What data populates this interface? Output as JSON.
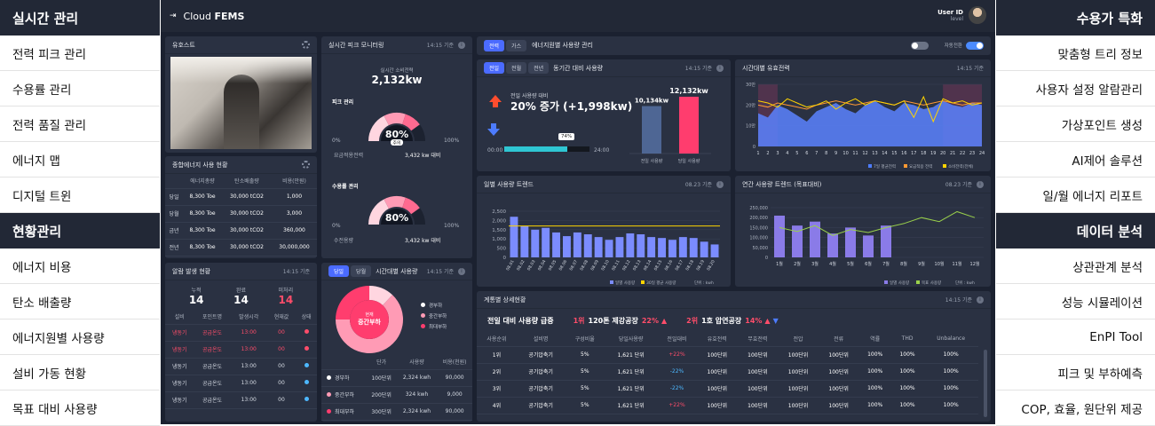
{
  "left_menu": [
    {
      "type": "header",
      "label": "실시간 관리"
    },
    {
      "type": "item",
      "label": "전력 피크 관리"
    },
    {
      "type": "item",
      "label": "수용률 관리"
    },
    {
      "type": "item",
      "label": "전력 품질 관리"
    },
    {
      "type": "item",
      "label": "에너지 맵"
    },
    {
      "type": "item",
      "label": "디지털 트윈"
    },
    {
      "type": "header",
      "label": "현황관리"
    },
    {
      "type": "item",
      "label": "에너지 비용"
    },
    {
      "type": "item",
      "label": "탄소 배출량"
    },
    {
      "type": "item",
      "label": "에너지원별 사용량"
    },
    {
      "type": "item",
      "label": "설비 가동 현황"
    },
    {
      "type": "item",
      "label": "목표 대비 사용량"
    }
  ],
  "right_menu": [
    {
      "type": "header",
      "label": "수용가 특화"
    },
    {
      "type": "item",
      "label": "맞춤형 트리 정보"
    },
    {
      "type": "item",
      "label": "사용자 설정 알람관리"
    },
    {
      "type": "item",
      "label": "가상포인트 생성"
    },
    {
      "type": "item",
      "label": "AI제어 솔루션"
    },
    {
      "type": "item",
      "label": "일/월 에너지 리포트"
    },
    {
      "type": "header",
      "label": "데이터 분석"
    },
    {
      "type": "item",
      "label": "상관관계 분석"
    },
    {
      "type": "item",
      "label": "성능 시뮬레이션"
    },
    {
      "type": "item",
      "label": "EnPI Tool"
    },
    {
      "type": "item",
      "label": "피크 및 부하예측"
    },
    {
      "type": "item",
      "label": "COP, 효율, 원단위 제공"
    }
  ],
  "topbar": {
    "app_prefix": "Cloud",
    "app_name": "FEMS",
    "user_id": "User ID",
    "user_level": "level"
  },
  "yuhost": {
    "title": "유호스트"
  },
  "summary": {
    "title": "종합에너지 사용 현황",
    "headers": [
      "",
      "에너지총량",
      "탄소배출량",
      "비용(만원)"
    ],
    "rows": [
      [
        "당일",
        "8,300 Toe",
        "30,000 tCO2",
        "1,000"
      ],
      [
        "당월",
        "8,300 Toe",
        "30,000 tCO2",
        "3,000"
      ],
      [
        "금년",
        "8,300 Toe",
        "30,000 tCO2",
        "360,000"
      ],
      [
        "전년",
        "8,300 Toe",
        "30,000 tCO2",
        "30,000,000"
      ]
    ]
  },
  "alarm": {
    "title": "알람 발생 현황",
    "time": "14:15 기준",
    "stats": [
      {
        "label": "누적",
        "value": "14"
      },
      {
        "label": "완료",
        "value": "14"
      },
      {
        "label": "미처리",
        "value": "14"
      }
    ],
    "headers": [
      "설비",
      "포인트명",
      "발생시각",
      "현재값",
      "상태"
    ],
    "rows": [
      [
        "냉동기",
        "공급온도",
        "13:00",
        "00",
        "#ff4d6a",
        "red"
      ],
      [
        "냉동기",
        "공급온도",
        "13:00",
        "00",
        "#ff4d6a",
        "red"
      ],
      [
        "냉동기",
        "공급온도",
        "13:00",
        "00",
        "#4db8ff",
        ""
      ],
      [
        "냉동기",
        "공급온도",
        "13:00",
        "00",
        "#4db8ff",
        ""
      ],
      [
        "냉동기",
        "공급온도",
        "13:00",
        "00",
        "#4db8ff",
        ""
      ]
    ]
  },
  "peak": {
    "title": "실시간 피크 모니터링",
    "time": "14:15 기준",
    "consumption_label": "실시간 소비전력",
    "consumption_value": "2,132kw",
    "peak_label": "피크 관리",
    "g1_percent": "80%",
    "g1_value": 0.8,
    "status": "주의",
    "contract_label": "요금적용전력",
    "contract_value": "3,432 kw 대비",
    "demand_label": "수용률 관리",
    "g2_percent": "80%",
    "g2_value": 0.8,
    "receive_label": "수전용량",
    "receive_value": "3,432 kw 대비",
    "scale_min": "0%",
    "scale_max": "100%"
  },
  "hourly": {
    "tabs": [
      "당일",
      "당월"
    ],
    "title": "시간대별 사용량",
    "time": "14:15 기준",
    "center_top": "현재",
    "center_main": "중간부하",
    "legend": [
      {
        "name": "경부하",
        "color": "#ffffff"
      },
      {
        "name": "중간부하",
        "color": "#ff9bb5"
      },
      {
        "name": "최대부하",
        "color": "#ff3d6e"
      }
    ],
    "headers": [
      "",
      "단가",
      "사용량",
      "비용(천원)"
    ],
    "rows": [
      {
        "name": "경부하",
        "color": "#ffffff",
        "price": "100단위",
        "usage": "2,324 kwh",
        "cost": "90,000"
      },
      {
        "name": "중간부하",
        "color": "#ff9bb5",
        "price": "200단위",
        "usage": "324 kwh",
        "cost": "9,000"
      },
      {
        "name": "최대부하",
        "color": "#ff3d6e",
        "price": "300단위",
        "usage": "2,324 kwh",
        "cost": "90,000"
      }
    ]
  },
  "energy_mgmt": {
    "tabs": [
      "전력",
      "가스"
    ],
    "title": "에너지원별 사용량 관리",
    "auto_label": "자동전환"
  },
  "compare": {
    "tabs": [
      "전일",
      "전월",
      "전년"
    ],
    "title": "동기간 대비 사용량",
    "time": "14:15 기준",
    "delta_label": "전일 사용량 대비",
    "delta_value": "20% 증가 (+1,998kw)",
    "progress_pct": "74%",
    "progress_value": 0.74,
    "time_start": "00:00",
    "time_end": "24:00"
  },
  "effective": {
    "title": "시간대별 유효전력",
    "time": "14:15 기준",
    "legend": [
      {
        "name": "7일 평균전력",
        "color": "#4d7cff"
      },
      {
        "name": "요금적용 전력",
        "color": "#ff9933"
      },
      {
        "name": "소비전력(전체)",
        "color": "#ffd400"
      }
    ]
  },
  "daily": {
    "title": "일별 사용량 트렌드",
    "time": "08.23 기준",
    "legend_bar": "일별 사용량",
    "legend_line": "30일 평균 사용량",
    "unit": "단위 : kwh"
  },
  "monthly": {
    "title": "연간 사용량 트렌드 (목표대비)",
    "time": "08.23 기준",
    "legend_bar": "일별 사용량",
    "legend_line": "목표 사용량",
    "unit": "단위 : kwh"
  },
  "detail": {
    "title": "계통별 상세현황",
    "time": "14:15 기준",
    "headline": "전일 대비 사용량 급증",
    "rank1": "1위",
    "rank1_name": "120톤 제강공장",
    "rank1_pct": "22%",
    "rank2": "2위",
    "rank2_name": "1호 압연공장",
    "rank2_pct": "14%",
    "headers": [
      "사용순위",
      "설비명",
      "구성비율",
      "당일사용량",
      "전일대비",
      "유효전력",
      "무효전력",
      "전압",
      "전류",
      "역률",
      "THD",
      "Unbalance"
    ],
    "rows": [
      [
        "1위",
        "공기압축기",
        "5%",
        "1,621 단위",
        "+22%",
        "100단위",
        "100단위",
        "100단위",
        "100단위",
        "100%",
        "100%",
        "100%"
      ],
      [
        "2위",
        "공기압축기",
        "5%",
        "1,621 단위",
        "-22%",
        "100단위",
        "100단위",
        "100단위",
        "100단위",
        "100%",
        "100%",
        "100%"
      ],
      [
        "3위",
        "공기압축기",
        "5%",
        "1,621 단위",
        "-22%",
        "100단위",
        "100단위",
        "100단위",
        "100단위",
        "100%",
        "100%",
        "100%"
      ],
      [
        "4위",
        "공기압축기",
        "5%",
        "1,621 단위",
        "+22%",
        "100단위",
        "100단위",
        "100단위",
        "100단위",
        "100%",
        "100%",
        "100%"
      ]
    ]
  },
  "chart_data": [
    {
      "type": "bar",
      "id": "compare",
      "categories": [
        "전일 사용량",
        "당일 사용량"
      ],
      "values": [
        10134,
        12132
      ],
      "data_labels": [
        "10,134kw",
        "12,132kw"
      ],
      "colors": [
        "#4e6694",
        "#ff3d6e"
      ]
    },
    {
      "type": "area",
      "id": "effective",
      "x": [
        "1",
        "2",
        "3",
        "4",
        "5",
        "6",
        "7",
        "8",
        "9",
        "10",
        "11",
        "12",
        "13",
        "14",
        "15",
        "16",
        "17",
        "18",
        "19",
        "20",
        "21",
        "22",
        "23",
        "24"
      ],
      "yticks": [
        "30만",
        "20만",
        "10만",
        "0"
      ],
      "ylim": [
        0,
        30
      ],
      "series": [
        {
          "name": "7일 평균전력",
          "values": [
            16,
            14,
            20,
            18,
            15,
            12,
            17,
            19,
            21,
            18,
            16,
            20,
            22,
            19,
            17,
            21,
            20,
            18,
            19,
            22,
            20,
            19,
            21,
            20
          ]
        },
        {
          "name": "요금적용 전력",
          "values": [
            20,
            19,
            21,
            20,
            19,
            18,
            20,
            21,
            22,
            21,
            20,
            21,
            22,
            21,
            20,
            22,
            21,
            20,
            21,
            22,
            21,
            20,
            21,
            21
          ]
        },
        {
          "name": "소비전력(전체)",
          "values": [
            22,
            21,
            19,
            23,
            21,
            19,
            20,
            22,
            18,
            21,
            23,
            20,
            22,
            21,
            20,
            22,
            14,
            24,
            12,
            23,
            21,
            22,
            20,
            21
          ]
        }
      ],
      "highlight_ranges": [
        [
          1,
          3
        ],
        [
          20,
          24
        ]
      ]
    },
    {
      "type": "bar",
      "id": "daily",
      "x": [
        "08.01",
        "08.02",
        "08.03",
        "08.04",
        "08.05",
        "08.06",
        "08.07",
        "08.08",
        "08.09",
        "08.10",
        "08.11",
        "08.12",
        "08.13",
        "08.14",
        "08.15",
        "08.16",
        "08.17",
        "08.18",
        "08.19",
        "08.20"
      ],
      "values": [
        2200,
        1700,
        1500,
        1600,
        1350,
        1150,
        1350,
        1250,
        1100,
        950,
        1100,
        1300,
        1250,
        1100,
        1050,
        950,
        1100,
        1050,
        850,
        700
      ],
      "line": 1700,
      "yticks": [
        "2,500",
        "2,000",
        "1,500",
        "1,000",
        "500",
        "0"
      ],
      "ylim": [
        0,
        2500
      ]
    },
    {
      "type": "bar",
      "id": "monthly",
      "x": [
        "1월",
        "2월",
        "3월",
        "4월",
        "5월",
        "6월",
        "7월",
        "8월",
        "9월",
        "10월",
        "11월",
        "12월"
      ],
      "values": [
        210000,
        160000,
        180000,
        120000,
        150000,
        110000,
        160000,
        null,
        null,
        null,
        null,
        null
      ],
      "line": [
        150000,
        130000,
        160000,
        110000,
        140000,
        125000,
        150000,
        170000,
        200000,
        180000,
        230000,
        200000
      ],
      "yticks": [
        "250,000",
        "200,000",
        "150,000",
        "100,000",
        "50,000",
        "0"
      ],
      "ylim": [
        0,
        250000
      ]
    }
  ]
}
